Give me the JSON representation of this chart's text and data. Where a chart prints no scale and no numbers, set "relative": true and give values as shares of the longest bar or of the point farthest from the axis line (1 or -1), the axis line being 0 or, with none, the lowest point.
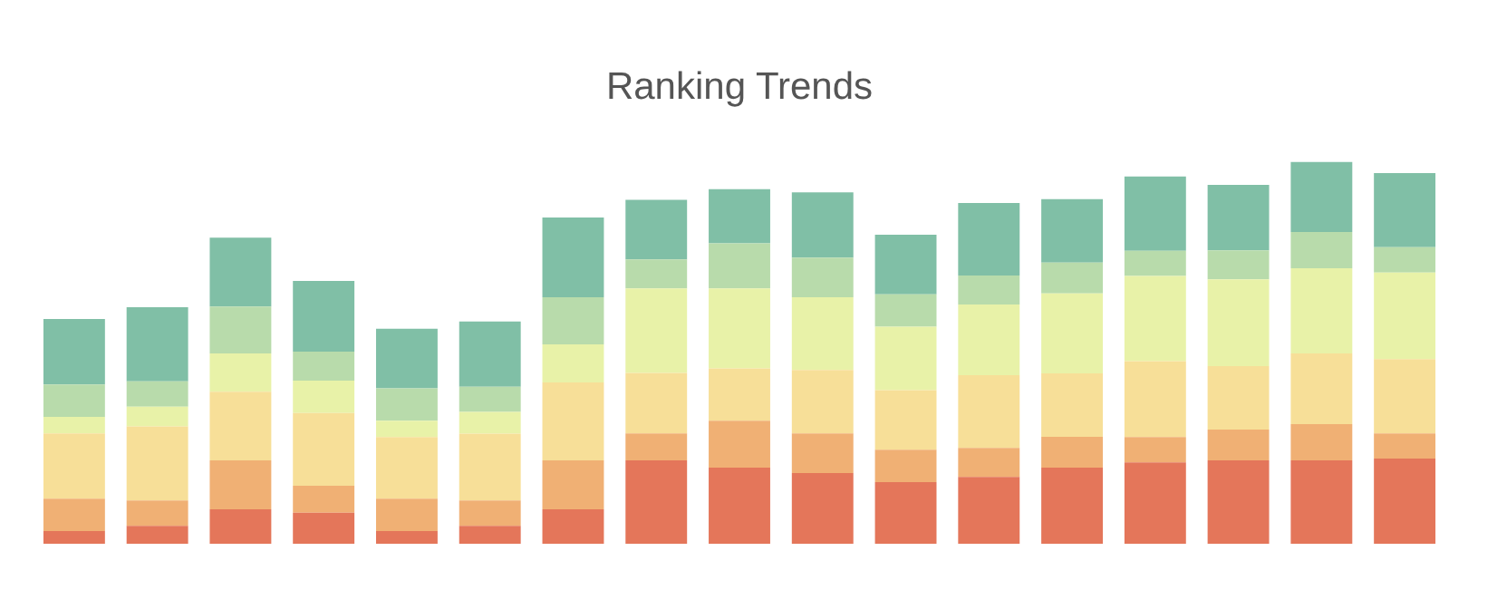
{
  "chart_data": {
    "type": "bar",
    "title": "Ranking Trends",
    "relative": true,
    "stacked": true,
    "legend": false,
    "grid": false,
    "categories": [
      null,
      null,
      null,
      null,
      null,
      null,
      null,
      null,
      null,
      null,
      null,
      null,
      null,
      null,
      null,
      null,
      null
    ],
    "series": [
      {
        "color": "#e4765a",
        "values": [
          0.033,
          0.047,
          0.09,
          0.081,
          0.033,
          0.047,
          0.09,
          0.218,
          0.199,
          0.185,
          0.161,
          0.175,
          0.199,
          0.213,
          0.218,
          0.218,
          0.223
        ]
      },
      {
        "color": "#f0b074",
        "values": [
          0.085,
          0.066,
          0.128,
          0.071,
          0.085,
          0.066,
          0.128,
          0.071,
          0.123,
          0.104,
          0.085,
          0.076,
          0.081,
          0.066,
          0.081,
          0.095,
          0.066
        ]
      },
      {
        "color": "#f7df98",
        "values": [
          0.171,
          0.194,
          0.18,
          0.19,
          0.161,
          0.175,
          0.204,
          0.158,
          0.137,
          0.166,
          0.156,
          0.19,
          0.166,
          0.199,
          0.166,
          0.185,
          0.194
        ]
      },
      {
        "color": "#e8f2a8",
        "values": [
          0.043,
          0.052,
          0.1,
          0.085,
          0.043,
          0.057,
          0.1,
          0.221,
          0.209,
          0.19,
          0.166,
          0.185,
          0.209,
          0.223,
          0.227,
          0.223,
          0.227
        ]
      },
      {
        "color": "#b8dbab",
        "values": [
          0.085,
          0.066,
          0.123,
          0.076,
          0.085,
          0.066,
          0.123,
          0.076,
          0.118,
          0.104,
          0.085,
          0.076,
          0.081,
          0.066,
          0.076,
          0.095,
          0.066
        ]
      },
      {
        "color": "#80bfa6",
        "values": [
          0.171,
          0.194,
          0.18,
          0.185,
          0.156,
          0.171,
          0.209,
          0.156,
          0.142,
          0.171,
          0.156,
          0.19,
          0.166,
          0.194,
          0.171,
          0.184,
          0.194
        ]
      }
    ]
  }
}
